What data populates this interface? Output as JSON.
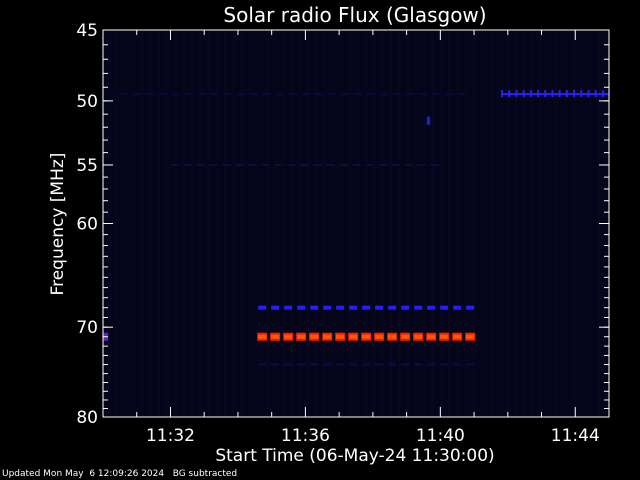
{
  "chart_data": {
    "type": "heatmap",
    "title": "Solar radio Flux (Glasgow)",
    "xlabel": "Start Time (06-May-24 11:30:00)",
    "ylabel": "Frequency [MHz]",
    "x_unit": "minutes since 11:30:00",
    "xlim": [
      0,
      15
    ],
    "ylim": [
      45,
      80
    ],
    "x_ticks": [
      {
        "value": 2,
        "label": "11:32"
      },
      {
        "value": 6,
        "label": "11:36"
      },
      {
        "value": 10,
        "label": "11:40"
      },
      {
        "value": 14,
        "label": "11:44"
      }
    ],
    "y_ticks": [
      {
        "value": 45,
        "label": "45"
      },
      {
        "value": 50,
        "label": "50"
      },
      {
        "value": 55,
        "label": "55"
      },
      {
        "value": 60,
        "label": "60"
      },
      {
        "value": 70,
        "label": "70"
      },
      {
        "value": 80,
        "label": "80"
      }
    ],
    "series": [
      {
        "x_start": 4.6,
        "x_end": 11.0,
        "y": 68.0,
        "color": "#2a1cff",
        "style": "dashed"
      },
      {
        "x_start": 4.6,
        "x_end": 11.0,
        "y": 71.0,
        "color": "#ff5a00",
        "style": "dashed-outlined",
        "outline": "#ff1a00"
      },
      {
        "x_start": 11.8,
        "x_end": 15.0,
        "y": 49.5,
        "color": "#2a20ff",
        "style": "ticks"
      },
      {
        "x_start": 0.0,
        "x_end": 0.15,
        "y": 71.0,
        "color": "#6a1cc8",
        "style": "spot"
      },
      {
        "x_start": 9.6,
        "x_end": 9.7,
        "y": 51.5,
        "color": "#2020c8",
        "style": "spot"
      },
      {
        "x_start": 4.6,
        "x_end": 11.0,
        "y": 74.0,
        "color": "#0c0c4a",
        "style": "faint"
      },
      {
        "x_start": 2.0,
        "x_end": 10.0,
        "y": 55.0,
        "color": "#0c0c40",
        "style": "faint"
      },
      {
        "x_start": 0.5,
        "x_end": 11.0,
        "y": 49.5,
        "color": "#0a0a38",
        "style": "faint"
      }
    ],
    "colors": {
      "background": "#000000",
      "plot": "#05051a",
      "axes": "#ffffff"
    }
  },
  "footer": {
    "updated": "Updated Mon May  6 12:09:26 2024",
    "note": "BG subtracted"
  }
}
